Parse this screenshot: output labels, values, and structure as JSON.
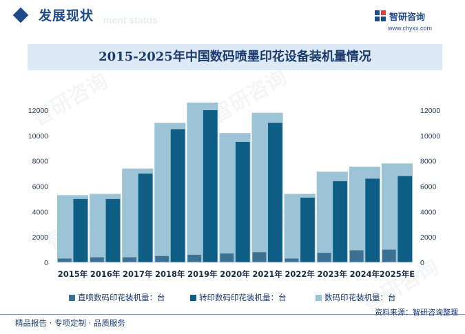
{
  "header": {
    "section_title": "发展现状",
    "section_subtitle": "ment status",
    "brand_name": "智研咨询",
    "brand_url": "www.chyxx.com"
  },
  "footer": {
    "left_text": "精品报告 · 专项定制 · 品质服务",
    "source": "资料来源：智研咨询整理"
  },
  "colors": {
    "series1": "#3d7194",
    "series2": "#0e5d85",
    "series3": "#9dc3d6",
    "accent": "#1f4a8a"
  },
  "chart_data": {
    "type": "bar",
    "title": "2015-2025年中国数码喷墨印花设备装机量情况",
    "categories": [
      "2015年",
      "2016年",
      "2017年",
      "2018年",
      "2019年",
      "2020年",
      "2021年",
      "2022年",
      "2023年",
      "2024年",
      "2025年E"
    ],
    "series": [
      {
        "name": "直喷数码印花装机量：台",
        "values": [
          300,
          400,
          400,
          500,
          600,
          700,
          800,
          300,
          750,
          950,
          1000
        ]
      },
      {
        "name": "转印数码印花装机量：台",
        "values": [
          5000,
          5000,
          7000,
          10500,
          12000,
          9500,
          11000,
          5100,
          6400,
          6600,
          6800
        ]
      },
      {
        "name": "数码印花装机量：台",
        "values": [
          5300,
          5400,
          7400,
          11000,
          12600,
          10200,
          11800,
          5400,
          7150,
          7550,
          7800
        ]
      }
    ],
    "ylim": [
      0,
      12000
    ],
    "yticks": [
      0,
      2000,
      4000,
      6000,
      8000,
      10000,
      12000
    ],
    "grid": false,
    "legend_position": "bottom"
  }
}
